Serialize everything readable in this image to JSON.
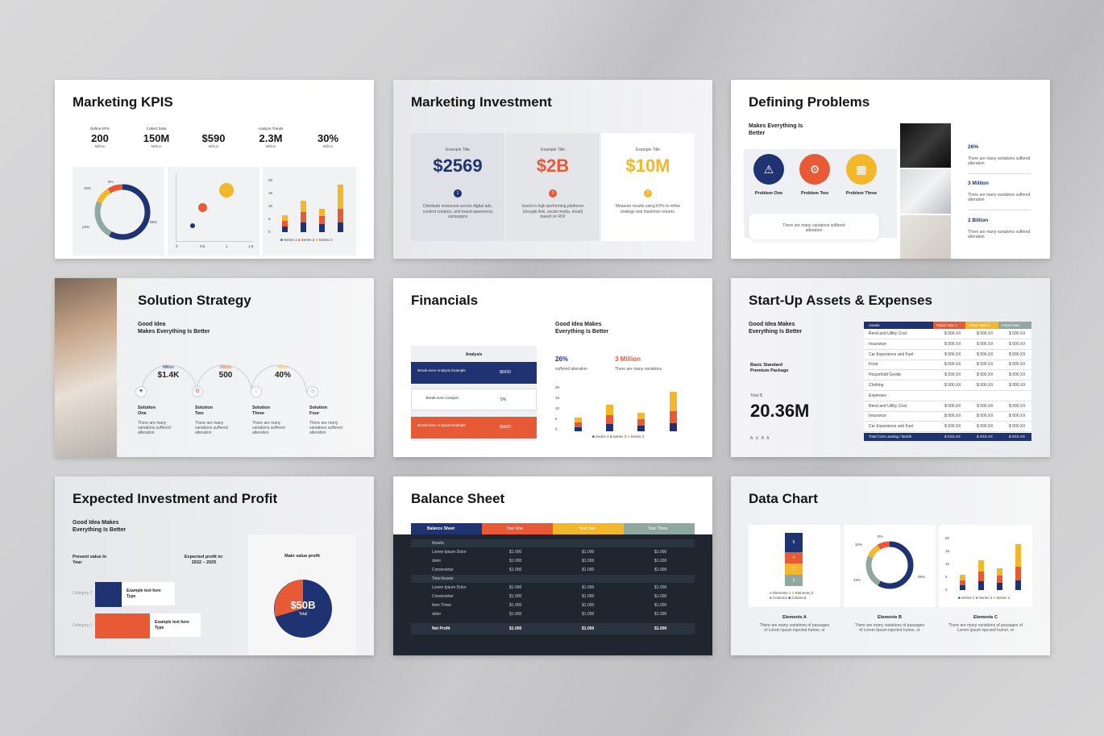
{
  "colors": {
    "navy": "#1f3272",
    "orange": "#e85a36",
    "yellow": "#f2b72a",
    "teal": "#8fa9a1",
    "dark": "#1f2630"
  },
  "slides": {
    "kpis": {
      "title": "Marketing KPIS",
      "items": [
        {
          "label": "Define KPIs",
          "value": "200",
          "unit": "Million"
        },
        {
          "label": "Collect Data",
          "value": "150M",
          "unit": "Million"
        },
        {
          "label": "",
          "value": "$590",
          "unit": "Million"
        },
        {
          "label": "Analyze Trends",
          "value": "2.3M",
          "unit": "Million"
        },
        {
          "label": "",
          "value": "30%",
          "unit": "Million"
        }
      ],
      "donut_labels": [
        "8%",
        "10%",
        "23%",
        "58%"
      ],
      "scatter_x_ticks": [
        "0",
        "0.5",
        "1",
        "1.5"
      ],
      "bar_y_ticks": [
        "20",
        "15",
        "10",
        "5",
        "0"
      ],
      "legend": [
        "Series 1",
        "Series 2",
        "Series 3"
      ]
    },
    "investment": {
      "title": "Marketing Investment",
      "cards": [
        {
          "label": "Example Title",
          "value": "$2569",
          "num": "1",
          "text": "Distribute resources across digital ads, content creation, and brand awareness campaigns"
        },
        {
          "label": "Example Title",
          "value": "$2B",
          "num": "2",
          "text": "Invest in high-performing platforms (Google Ads, social media, email) based on ROI"
        },
        {
          "label": "Example Title",
          "value": "$10M",
          "num": "3",
          "text": "Measure results using KPIs to refine strategy and maximize returns."
        }
      ]
    },
    "problems": {
      "title": "Defining Problems",
      "subtitle": "Makes Everything Is Better",
      "icons": [
        {
          "label": "Problem One",
          "icon": "warning-icon"
        },
        {
          "label": "Problem Two",
          "icon": "head-gear-icon"
        },
        {
          "label": "Problem Three",
          "icon": "building-icon"
        }
      ],
      "note": "There are many variations suffered alteration",
      "stats": [
        {
          "value": "26%",
          "text": "There are many variations suffered alteration"
        },
        {
          "value": "3 Million",
          "text": "There are many variations suffered alteration"
        },
        {
          "value": "2 Billion",
          "text": "There are many variations suffered alteration"
        }
      ]
    },
    "strategy": {
      "title": "Solution Strategy",
      "subtitle_1": "Good Idea",
      "subtitle_2": "Makes Everything Is Better",
      "items": [
        {
          "tag": "Million",
          "value": "$1.4K",
          "name": "Solution One",
          "text": "There are many variations suffered alteration"
        },
        {
          "tag": "Million",
          "value": "500",
          "name": "Solution Two",
          "text": "There are many variations suffered alteration"
        },
        {
          "tag": "Million",
          "value": "40%",
          "name": "Solution Three",
          "text": "There are many variations suffered alteration"
        },
        {
          "tag": "",
          "value": "",
          "name": "Solution Four",
          "text": "There are many variations suffered alteration"
        }
      ]
    },
    "financials": {
      "title": "Financials",
      "subtitle": "Good Idea Makes Everything Is Better",
      "table_header": "Analysis",
      "rows": [
        {
          "label": "Break-even Analysis Example",
          "value": "$5600"
        },
        {
          "label": "Break-even Analysis",
          "value": "5%"
        },
        {
          "label": "Break-even Analysis Example",
          "value": "$5600"
        }
      ],
      "stat_1": {
        "value": "26%",
        "text": "suffered alteration"
      },
      "stat_2": {
        "value": "3 Million",
        "text": "There are many variations"
      },
      "y_ticks": [
        "20",
        "15",
        "10",
        "5",
        "0"
      ],
      "legend": [
        "Series 1",
        "Series 2",
        "Series 3"
      ]
    },
    "assets": {
      "title": "Start-Up Assets & Expenses",
      "subtitle": "Good Idea Makes Everything Is Better",
      "package": "Basic Standard Premium Package",
      "total_label": "Total $",
      "total": "20.36M",
      "brand": "A U R A",
      "headers": [
        "Assets",
        "Fiscal Year 1",
        "Fiscal Year 2",
        "Fiscal Year"
      ],
      "rows": [
        {
          "label": "Rend and Utility Cost",
          "v": "$ 000.XX"
        },
        {
          "label": "Insurance",
          "v": "$ 000.XX"
        },
        {
          "label": "Car Experience and Fuel",
          "v": "$ 000.XX"
        },
        {
          "label": "Food",
          "v": "$ 000.XX"
        },
        {
          "label": "Household Goods",
          "v": "$ 000.XX"
        },
        {
          "label": "Clothing",
          "v": "$ 000.XX"
        },
        {
          "label": "Expenses",
          "v": ""
        },
        {
          "label": "Rend and Utility Cost",
          "v": "$ 000.XX"
        },
        {
          "label": "Insurance",
          "v": "$ 000.XX"
        },
        {
          "label": "Car Experience and Fuel",
          "v": "$ 000.XX"
        }
      ],
      "footer": {
        "label": "Total Cost Leaving / Month",
        "v": "$ XXX.XX"
      }
    },
    "expected": {
      "title": "Expected Investment and Profit",
      "subtitle": "Good Idea Makes Everything Is Better",
      "present": "Present value In Year",
      "expected": "Expected profit in: 2022 – 2025",
      "cat_2": "Category 2",
      "cat_1": "Category 1",
      "box_text": "Example text here Type",
      "main_value_label": "Main value profit",
      "pie_value": "$50B",
      "pie_sub": "Total"
    },
    "balance": {
      "title": "Balance Sheet",
      "headers": [
        "Balance Sheet",
        "Year One",
        "Year Two",
        "Year Three"
      ],
      "rows": [
        {
          "label": "Assets",
          "v": ""
        },
        {
          "label": "Lorem Ipsum Dolor",
          "v": "$1.000"
        },
        {
          "label": "dolor",
          "v": "$1.000"
        },
        {
          "label": "Consectetur",
          "v": "$1.000"
        },
        {
          "label": "Total Assets",
          "v": ""
        },
        {
          "label": "Lorem Ipsum Dolor",
          "v": "$1.000"
        },
        {
          "label": "Consectetur",
          "v": "$1.000"
        },
        {
          "label": "Item Three",
          "v": "$1.000"
        },
        {
          "label": "dolor",
          "v": "$1.000"
        }
      ],
      "net_label": "Net Profit",
      "net_value": "$1.000"
    },
    "datachart": {
      "title": "Data Chart",
      "elements": [
        {
          "name": "Elements A",
          "text": "There are many variations of passages of Lorem Ipsum injected humor, or"
        },
        {
          "name": "Elements B",
          "text": "There are many variations of passages of Lorem Ipsum injected humor, or"
        },
        {
          "name": "Elements C",
          "text": "There are many variations of passages of Lorem Ipsum injected humor, or"
        }
      ],
      "stack_labels": [
        "5",
        "4",
        "3",
        "2"
      ],
      "legend_a": [
        "Elements 1",
        "Elements 2",
        "Column1",
        "Column3"
      ],
      "donut_labels": [
        "8%",
        "10%",
        "23%",
        "58%"
      ],
      "legend": [
        "Series 1",
        "Series 2",
        "Series 3"
      ],
      "y_ticks": [
        "20",
        "15",
        "10",
        "5",
        "0"
      ]
    }
  }
}
